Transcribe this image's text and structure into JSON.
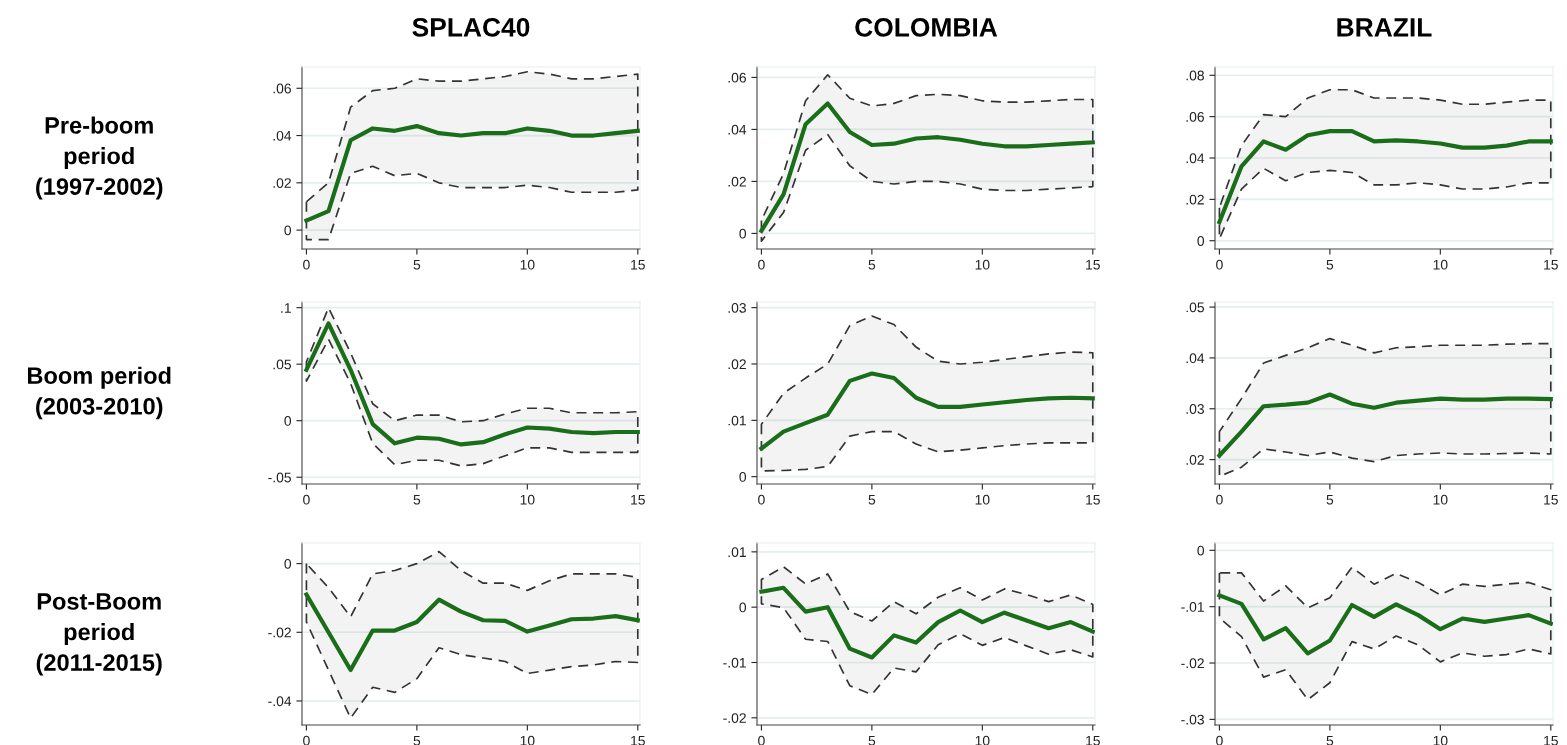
{
  "chart_data": [
    {
      "type": "line",
      "title": "SPLAC40",
      "ylabel": "Pre-boom\nperiod\n(1997-2002)",
      "x": [
        0,
        1,
        2,
        3,
        4,
        5,
        6,
        7,
        8,
        9,
        10,
        11,
        12,
        13,
        14,
        15
      ],
      "xlim": [
        -0.2,
        15.1
      ],
      "xticks": [
        0,
        5,
        10,
        15
      ],
      "ylim": [
        -0.008,
        0.069
      ],
      "yticks": [
        {
          "value": 0,
          "label": "0"
        },
        {
          "value": 0.02,
          "label": ".02"
        },
        {
          "value": 0.04,
          "label": ".04"
        },
        {
          "value": 0.06,
          "label": ".06"
        }
      ],
      "grid": "y",
      "series": [
        {
          "color": "#1a6e1a",
          "values": [
            0.004,
            0.008,
            0.038,
            0.043,
            0.042,
            0.044,
            0.041,
            0.04,
            0.041,
            0.041,
            0.043,
            0.042,
            0.04,
            0.04,
            0.041,
            0.042
          ],
          "upper": [
            0.012,
            0.02,
            0.052,
            0.059,
            0.06,
            0.064,
            0.063,
            0.063,
            0.064,
            0.065,
            0.067,
            0.066,
            0.064,
            0.064,
            0.065,
            0.066
          ],
          "lower": [
            -0.004,
            -0.004,
            0.024,
            0.027,
            0.023,
            0.024,
            0.02,
            0.018,
            0.018,
            0.018,
            0.019,
            0.018,
            0.016,
            0.016,
            0.016,
            0.017
          ]
        }
      ]
    },
    {
      "type": "line",
      "title": "COLOMBIA",
      "x": [
        0,
        1,
        2,
        3,
        4,
        5,
        6,
        7,
        8,
        9,
        10,
        11,
        12,
        13,
        14,
        15
      ],
      "xlim": [
        -0.2,
        15.1
      ],
      "xticks": [
        0,
        5,
        10,
        15
      ],
      "ylim": [
        -0.006,
        0.064
      ],
      "yticks": [
        {
          "value": 0,
          "label": "0"
        },
        {
          "value": 0.02,
          "label": ".02"
        },
        {
          "value": 0.04,
          "label": ".04"
        },
        {
          "value": 0.06,
          "label": ".06"
        }
      ],
      "grid": "y",
      "series": [
        {
          "color": "#1a6e1a",
          "values": [
            0.001,
            0.015,
            0.042,
            0.05,
            0.039,
            0.034,
            0.0345,
            0.0365,
            0.037,
            0.036,
            0.0345,
            0.0335,
            0.0335,
            0.034,
            0.0345,
            0.035
          ],
          "upper": [
            0.005,
            0.023,
            0.051,
            0.061,
            0.052,
            0.049,
            0.05,
            0.053,
            0.0535,
            0.053,
            0.051,
            0.0505,
            0.0505,
            0.051,
            0.0515,
            0.0515
          ],
          "lower": [
            -0.003,
            0.008,
            0.032,
            0.038,
            0.026,
            0.02,
            0.019,
            0.02,
            0.02,
            0.019,
            0.017,
            0.0165,
            0.0165,
            0.017,
            0.0175,
            0.018
          ]
        }
      ]
    },
    {
      "type": "line",
      "title": "BRAZIL",
      "x": [
        0,
        1,
        2,
        3,
        4,
        5,
        6,
        7,
        8,
        9,
        10,
        11,
        12,
        13,
        14,
        15
      ],
      "xlim": [
        -0.2,
        15.1
      ],
      "xticks": [
        0,
        5,
        10,
        15
      ],
      "ylim": [
        -0.004,
        0.084
      ],
      "yticks": [
        {
          "value": 0,
          "label": "0"
        },
        {
          "value": 0.02,
          "label": ".02"
        },
        {
          "value": 0.04,
          "label": ".04"
        },
        {
          "value": 0.06,
          "label": ".06"
        },
        {
          "value": 0.08,
          "label": ".08"
        }
      ],
      "grid": "y",
      "series": [
        {
          "color": "#1a6e1a",
          "values": [
            0.009,
            0.036,
            0.048,
            0.044,
            0.051,
            0.053,
            0.053,
            0.048,
            0.0485,
            0.048,
            0.047,
            0.045,
            0.045,
            0.046,
            0.048,
            0.048
          ],
          "upper": [
            0.016,
            0.046,
            0.061,
            0.06,
            0.069,
            0.073,
            0.073,
            0.069,
            0.069,
            0.069,
            0.068,
            0.066,
            0.066,
            0.067,
            0.068,
            0.068
          ],
          "lower": [
            0.001,
            0.025,
            0.035,
            0.029,
            0.033,
            0.034,
            0.033,
            0.027,
            0.027,
            0.028,
            0.027,
            0.025,
            0.025,
            0.026,
            0.028,
            0.028
          ]
        }
      ]
    },
    {
      "type": "line",
      "ylabel": "Boom period\n(2003-2010)",
      "x": [
        0,
        1,
        2,
        3,
        4,
        5,
        6,
        7,
        8,
        9,
        10,
        11,
        12,
        13,
        14,
        15
      ],
      "xlim": [
        -0.2,
        15.1
      ],
      "xticks": [
        0,
        5,
        10,
        15
      ],
      "ylim": [
        -0.056,
        0.105
      ],
      "yticks": [
        {
          "value": -0.05,
          "label": "-.05"
        },
        {
          "value": 0,
          "label": "0"
        },
        {
          "value": 0.05,
          "label": ".05"
        },
        {
          "value": 0.1,
          "label": ".1"
        }
      ],
      "grid": "y",
      "series": [
        {
          "color": "#1a6e1a",
          "values": [
            0.045,
            0.086,
            0.045,
            -0.003,
            -0.02,
            -0.015,
            -0.016,
            -0.021,
            -0.019,
            -0.012,
            -0.006,
            -0.007,
            -0.01,
            -0.011,
            -0.01,
            -0.01
          ],
          "upper": [
            0.052,
            0.1,
            0.06,
            0.015,
            0.0,
            0.005,
            0.005,
            -0.001,
            0.0,
            0.006,
            0.011,
            0.011,
            0.007,
            0.007,
            0.007,
            0.008
          ],
          "lower": [
            0.035,
            0.072,
            0.033,
            -0.02,
            -0.039,
            -0.035,
            -0.035,
            -0.04,
            -0.038,
            -0.031,
            -0.024,
            -0.024,
            -0.028,
            -0.028,
            -0.028,
            -0.028
          ]
        }
      ]
    },
    {
      "type": "line",
      "x": [
        0,
        1,
        2,
        3,
        4,
        5,
        6,
        7,
        8,
        9,
        10,
        11,
        12,
        13,
        14,
        15
      ],
      "xlim": [
        -0.2,
        15.1
      ],
      "xticks": [
        0,
        5,
        10,
        15
      ],
      "ylim": [
        -0.0013,
        0.031
      ],
      "yticks": [
        {
          "value": 0,
          "label": "0"
        },
        {
          "value": 0.01,
          "label": ".01"
        },
        {
          "value": 0.02,
          "label": ".02"
        },
        {
          "value": 0.03,
          "label": ".03"
        }
      ],
      "grid": "y",
      "series": [
        {
          "color": "#1a6e1a",
          "values": [
            0.005,
            0.008,
            0.0095,
            0.011,
            0.017,
            0.0183,
            0.0175,
            0.014,
            0.0124,
            0.0124,
            0.0128,
            0.0132,
            0.0136,
            0.0139,
            0.014,
            0.0139
          ],
          "upper": [
            0.0093,
            0.0148,
            0.0175,
            0.02,
            0.0268,
            0.0285,
            0.027,
            0.023,
            0.0205,
            0.02,
            0.0203,
            0.0208,
            0.0213,
            0.0218,
            0.0221,
            0.022
          ],
          "lower": [
            0.001,
            0.0011,
            0.0013,
            0.0018,
            0.0072,
            0.008,
            0.008,
            0.0058,
            0.0044,
            0.0047,
            0.0051,
            0.0055,
            0.0058,
            0.006,
            0.006,
            0.006
          ]
        }
      ]
    },
    {
      "type": "line",
      "x": [
        0,
        1,
        2,
        3,
        4,
        5,
        6,
        7,
        8,
        9,
        10,
        11,
        12,
        13,
        14,
        15
      ],
      "xlim": [
        -0.2,
        15.1
      ],
      "xticks": [
        0,
        5,
        10,
        15
      ],
      "ylim": [
        0.0152,
        0.051
      ],
      "yticks": [
        {
          "value": 0.02,
          "label": ".02"
        },
        {
          "value": 0.03,
          "label": ".03"
        },
        {
          "value": 0.04,
          "label": ".04"
        },
        {
          "value": 0.05,
          "label": ".05"
        }
      ],
      "grid": "y",
      "series": [
        {
          "color": "#1a6e1a",
          "values": [
            0.0208,
            0.0255,
            0.0305,
            0.0308,
            0.0312,
            0.0328,
            0.031,
            0.0302,
            0.0312,
            0.0316,
            0.032,
            0.0318,
            0.0318,
            0.032,
            0.032,
            0.0319
          ],
          "upper": [
            0.0255,
            0.032,
            0.039,
            0.0405,
            0.042,
            0.0438,
            0.0425,
            0.041,
            0.042,
            0.0422,
            0.0425,
            0.0425,
            0.0425,
            0.0427,
            0.0428,
            0.0428
          ],
          "lower": [
            0.0167,
            0.0185,
            0.0221,
            0.0215,
            0.0208,
            0.0215,
            0.0203,
            0.0196,
            0.0208,
            0.0211,
            0.0213,
            0.0211,
            0.0211,
            0.0212,
            0.0213,
            0.0211
          ]
        }
      ]
    },
    {
      "type": "line",
      "ylabel": "Post-Boom\nperiod\n(2011-2015)",
      "x": [
        0,
        1,
        2,
        3,
        4,
        5,
        6,
        7,
        8,
        9,
        10,
        11,
        12,
        13,
        14,
        15
      ],
      "xlim": [
        -0.2,
        15.1
      ],
      "xticks": [
        0,
        5,
        10,
        15
      ],
      "ylim": [
        -0.047,
        0.006
      ],
      "yticks": [
        {
          "value": -0.04,
          "label": "-.04"
        },
        {
          "value": -0.02,
          "label": "-.02"
        },
        {
          "value": 0,
          "label": "0"
        }
      ],
      "grid": "y",
      "series": [
        {
          "color": "#1a6e1a",
          "values": [
            -0.009,
            -0.02,
            -0.031,
            -0.0195,
            -0.0195,
            -0.017,
            -0.0105,
            -0.014,
            -0.0165,
            -0.0167,
            -0.0198,
            -0.018,
            -0.0162,
            -0.016,
            -0.0153,
            -0.0165
          ],
          "upper": [
            0.0,
            -0.007,
            -0.0155,
            -0.003,
            -0.002,
            0.0,
            0.0035,
            -0.002,
            -0.0057,
            -0.0057,
            -0.0078,
            -0.005,
            -0.003,
            -0.003,
            -0.003,
            -0.004
          ],
          "lower": [
            -0.017,
            -0.031,
            -0.045,
            -0.036,
            -0.0375,
            -0.0335,
            -0.0245,
            -0.0265,
            -0.0275,
            -0.0285,
            -0.032,
            -0.031,
            -0.03,
            -0.0295,
            -0.0285,
            -0.0288
          ]
        }
      ]
    },
    {
      "type": "line",
      "x": [
        0,
        1,
        2,
        3,
        4,
        5,
        6,
        7,
        8,
        9,
        10,
        11,
        12,
        13,
        14,
        15
      ],
      "xlim": [
        -0.2,
        15.1
      ],
      "xticks": [
        0,
        5,
        10,
        15
      ],
      "ylim": [
        -0.0213,
        0.0116
      ],
      "yticks": [
        {
          "value": -0.02,
          "label": "-.02"
        },
        {
          "value": -0.01,
          "label": "-.01"
        },
        {
          "value": 0,
          "label": "0"
        },
        {
          "value": 0.01,
          "label": ".01"
        }
      ],
      "grid": "y",
      "series": [
        {
          "color": "#1a6e1a",
          "values": [
            0.0028,
            0.0035,
            -0.0008,
            0.0,
            -0.0075,
            -0.0091,
            -0.0051,
            -0.0064,
            -0.0027,
            -0.0006,
            -0.0027,
            -0.001,
            -0.0024,
            -0.0038,
            -0.0027,
            -0.0044
          ],
          "upper": [
            0.005,
            0.0073,
            0.0042,
            0.006,
            -0.0008,
            -0.0025,
            0.001,
            -0.0012,
            0.0018,
            0.0035,
            0.0013,
            0.0033,
            0.0023,
            0.001,
            0.0022,
            0.0005
          ],
          "lower": [
            0.0006,
            -0.0001,
            -0.0058,
            -0.0062,
            -0.0142,
            -0.0158,
            -0.011,
            -0.0117,
            -0.0068,
            -0.0048,
            -0.0069,
            -0.0055,
            -0.007,
            -0.0085,
            -0.0077,
            -0.009
          ]
        }
      ]
    },
    {
      "type": "line",
      "x": [
        0,
        1,
        2,
        3,
        4,
        5,
        6,
        7,
        8,
        9,
        10,
        11,
        12,
        13,
        14,
        15
      ],
      "xlim": [
        -0.2,
        15.1
      ],
      "xticks": [
        0,
        5,
        10,
        15
      ],
      "ylim": [
        -0.031,
        0.0013
      ],
      "yticks": [
        {
          "value": -0.03,
          "label": "-.03"
        },
        {
          "value": -0.02,
          "label": "-.02"
        },
        {
          "value": -0.01,
          "label": "-.01"
        },
        {
          "value": 0,
          "label": "0"
        }
      ],
      "grid": "y",
      "series": [
        {
          "color": "#1a6e1a",
          "values": [
            -0.008,
            -0.0095,
            -0.0158,
            -0.0138,
            -0.0183,
            -0.016,
            -0.0097,
            -0.0118,
            -0.0096,
            -0.0115,
            -0.014,
            -0.0121,
            -0.0127,
            -0.0121,
            -0.0115,
            -0.013
          ],
          "upper": [
            -0.004,
            -0.004,
            -0.009,
            -0.0063,
            -0.0102,
            -0.0084,
            -0.003,
            -0.006,
            -0.0041,
            -0.0057,
            -0.0079,
            -0.006,
            -0.0064,
            -0.006,
            -0.0057,
            -0.007
          ],
          "lower": [
            -0.012,
            -0.0153,
            -0.0225,
            -0.0212,
            -0.0265,
            -0.0235,
            -0.0162,
            -0.0175,
            -0.0152,
            -0.0168,
            -0.0198,
            -0.0182,
            -0.0188,
            -0.0185,
            -0.0175,
            -0.0184
          ]
        }
      ]
    }
  ]
}
